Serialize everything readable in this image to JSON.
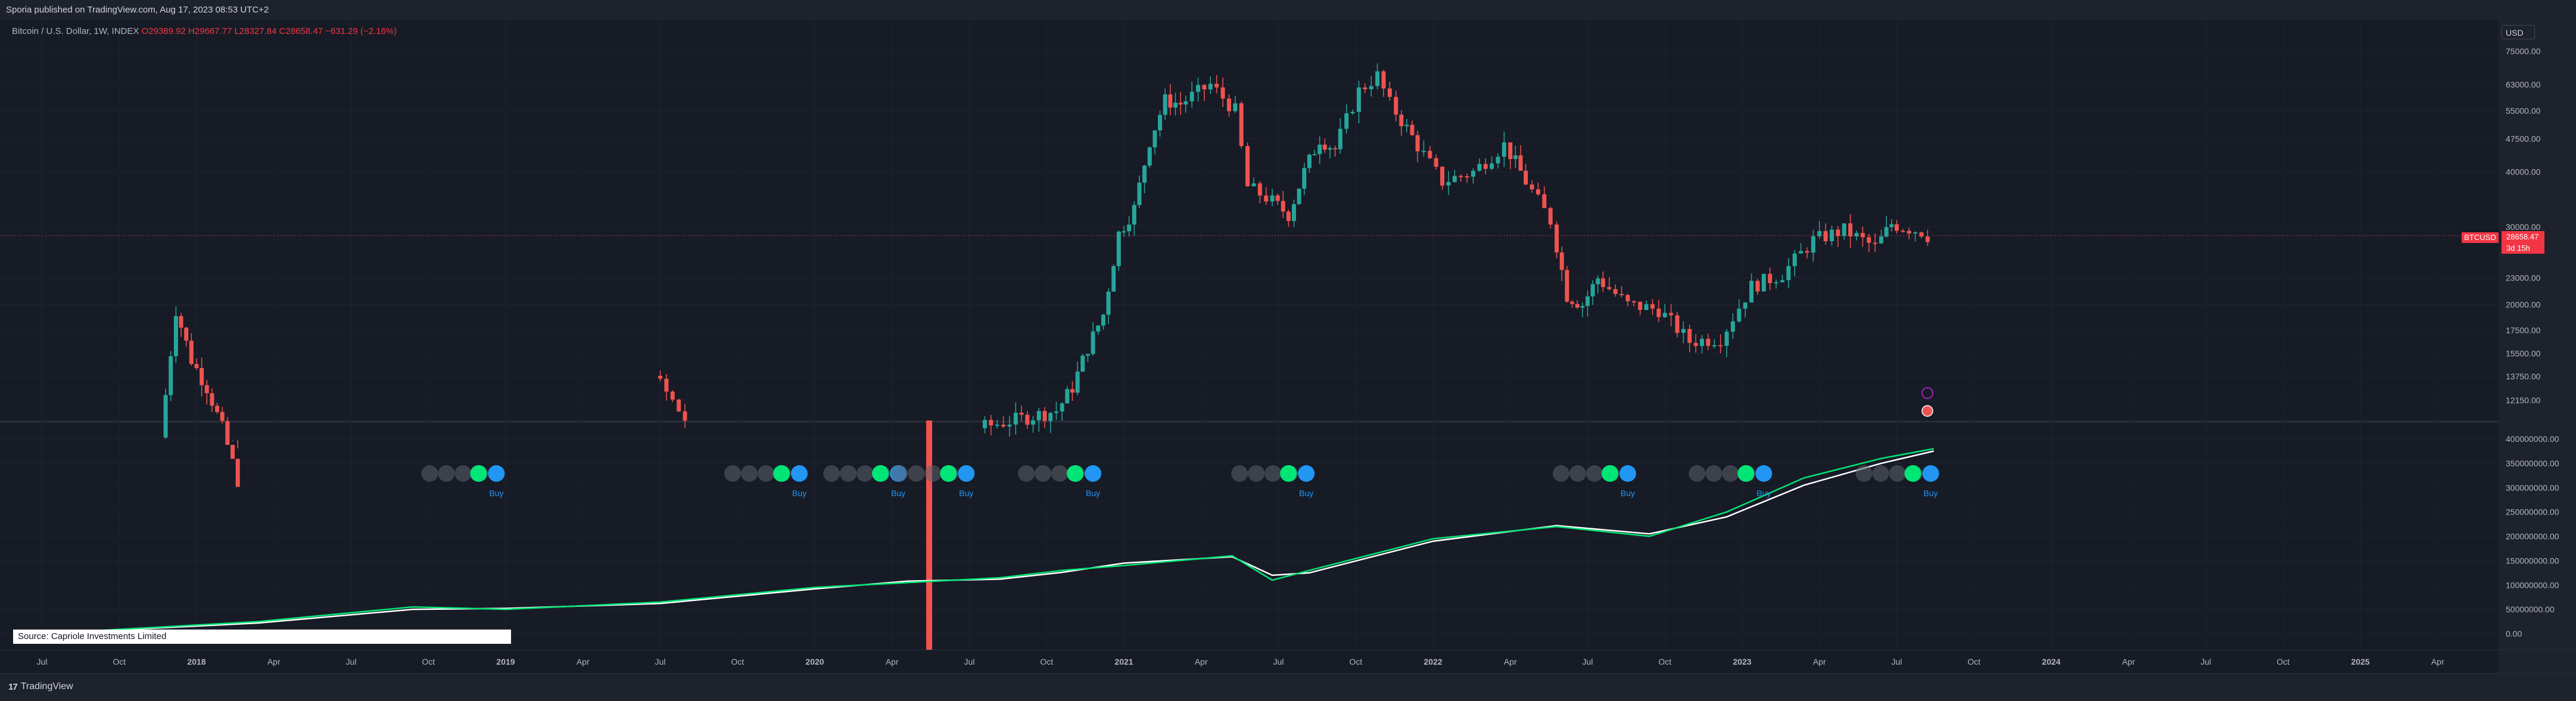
{
  "header": {
    "published": "Sporia published on TradingView.com, Aug 17, 2023 08:53 UTC+2"
  },
  "legend": {
    "symbol": "Bitcoin / U.S. Dollar, 1W, INDEX",
    "open": "O29389.92",
    "high": "H29667.77",
    "low": "L28327.84",
    "close": "C28658.47",
    "change": "−631.29 (−2.16%)"
  },
  "currency_button": "USD",
  "last_price": {
    "symbol": "BTCUSD",
    "price": "28658.47",
    "countdown": "3d 15h"
  },
  "source_note": "Source: Capriole Investments Limited",
  "footer": {
    "brand": "TradingView"
  },
  "colors": {
    "up": "#26a69a",
    "down": "#ef5350",
    "background": "#171b26",
    "ma_fast": "#00e676",
    "ma_slow": "#ffffff",
    "buy": "#2196f3",
    "signal_on": "#00e676",
    "signal_off": "#5d606b",
    "event": "#ef5350"
  },
  "chart_data": [
    {
      "type": "candlestick",
      "title": "Bitcoin / U.S. Dollar, 1W, INDEX",
      "scale": "log",
      "y_ticks": [
        "75000.00",
        "63000.00",
        "55000.00",
        "47500.00",
        "40000.00",
        "30000.00",
        "23000.00",
        "20000.00",
        "17500.00",
        "15500.00",
        "13750.00",
        "12150.00"
      ],
      "x_ticks": [
        "Jul",
        "Oct",
        "2018",
        "Apr",
        "Jul",
        "Oct",
        "2019",
        "Apr",
        "Jul",
        "Oct",
        "2020",
        "Apr",
        "Jul",
        "Oct",
        "2021",
        "Apr",
        "Jul",
        "Oct",
        "2022",
        "Apr",
        "Jul",
        "Oct",
        "2023",
        "Apr",
        "Jul",
        "Oct",
        "2024",
        "Apr",
        "Jul",
        "Oct",
        "2025",
        "Apr"
      ],
      "price_path": [
        [
          2017.9,
          10000
        ],
        [
          2017.95,
          19500
        ],
        [
          2018.0,
          15000
        ],
        [
          2018.05,
          13000
        ],
        [
          2018.1,
          10500
        ],
        [
          2018.15,
          8000
        ],
        [
          2019.5,
          13800
        ],
        [
          2019.6,
          11000
        ],
        [
          2020.55,
          10500
        ],
        [
          2020.65,
          10900
        ],
        [
          2020.8,
          11500
        ],
        [
          2020.85,
          13000
        ],
        [
          2020.9,
          16000
        ],
        [
          2020.95,
          19000
        ],
        [
          2021.0,
          29000
        ],
        [
          2021.05,
          33000
        ],
        [
          2021.1,
          47000
        ],
        [
          2021.15,
          58000
        ],
        [
          2021.2,
          57000
        ],
        [
          2021.3,
          63000
        ],
        [
          2021.38,
          55000
        ],
        [
          2021.42,
          37000
        ],
        [
          2021.48,
          35000
        ],
        [
          2021.55,
          32000
        ],
        [
          2021.6,
          40000
        ],
        [
          2021.65,
          47500
        ],
        [
          2021.7,
          45000
        ],
        [
          2021.78,
          61000
        ],
        [
          2021.84,
          66000
        ],
        [
          2021.88,
          57000
        ],
        [
          2021.95,
          48000
        ],
        [
          2022.05,
          38000
        ],
        [
          2022.15,
          40000
        ],
        [
          2022.25,
          46000
        ],
        [
          2022.3,
          40000
        ],
        [
          2022.4,
          31000
        ],
        [
          2022.45,
          21000
        ],
        [
          2022.5,
          20000
        ],
        [
          2022.55,
          23000
        ],
        [
          2022.65,
          20000
        ],
        [
          2022.75,
          19500
        ],
        [
          2022.85,
          16500
        ],
        [
          2022.95,
          16800
        ],
        [
          2023.05,
          22000
        ],
        [
          2023.15,
          23500
        ],
        [
          2023.25,
          28000
        ],
        [
          2023.35,
          29500
        ],
        [
          2023.45,
          27000
        ],
        [
          2023.5,
          30500
        ],
        [
          2023.6,
          29300
        ],
        [
          2023.62,
          28658
        ]
      ]
    },
    {
      "type": "line",
      "title": "",
      "y_ticks": [
        "400000000.00",
        "350000000.00",
        "300000000.00",
        "250000000.00",
        "200000000.00",
        "150000000.00",
        "100000000.00",
        "50000000.00",
        "0.00"
      ],
      "series": [
        {
          "x": [
            2017.5,
            2018.2,
            2018.7,
            2019.0,
            2019.5,
            2020.0,
            2020.3,
            2020.6,
            2020.8,
            2021.0,
            2021.35,
            2021.48,
            2021.6,
            2022.0,
            2022.4,
            2022.7,
            2022.95,
            2023.2,
            2023.45,
            2023.62
          ],
          "values": [
            0,
            25000000,
            55000000,
            50000000,
            65000000,
            95000000,
            105000000,
            115000000,
            130000000,
            140000000,
            160000000,
            110000000,
            130000000,
            195000000,
            220000000,
            200000000,
            250000000,
            320000000,
            360000000,
            380000000
          ]
        },
        {
          "x": [
            2017.5,
            2018.2,
            2018.7,
            2019.0,
            2019.5,
            2020.0,
            2020.3,
            2020.6,
            2020.8,
            2021.0,
            2021.35,
            2021.48,
            2021.6,
            2022.0,
            2022.4,
            2022.7,
            2022.95,
            2023.2,
            2023.45,
            2023.62
          ],
          "values": [
            0,
            22000000,
            50000000,
            52000000,
            62000000,
            92000000,
            108000000,
            112000000,
            126000000,
            145000000,
            158000000,
            120000000,
            125000000,
            190000000,
            222000000,
            205000000,
            240000000,
            305000000,
            350000000,
            375000000
          ]
        }
      ],
      "buy_labels": [
        "Buy",
        "Buy",
        "Buy",
        "Buy",
        "Buy",
        "Buy",
        "Buy",
        "Buy",
        "Buy"
      ],
      "buy_x": [
        2018.97,
        2019.95,
        2020.27,
        2020.49,
        2020.9,
        2021.59,
        2022.63,
        2023.07,
        2023.61
      ]
    }
  ]
}
